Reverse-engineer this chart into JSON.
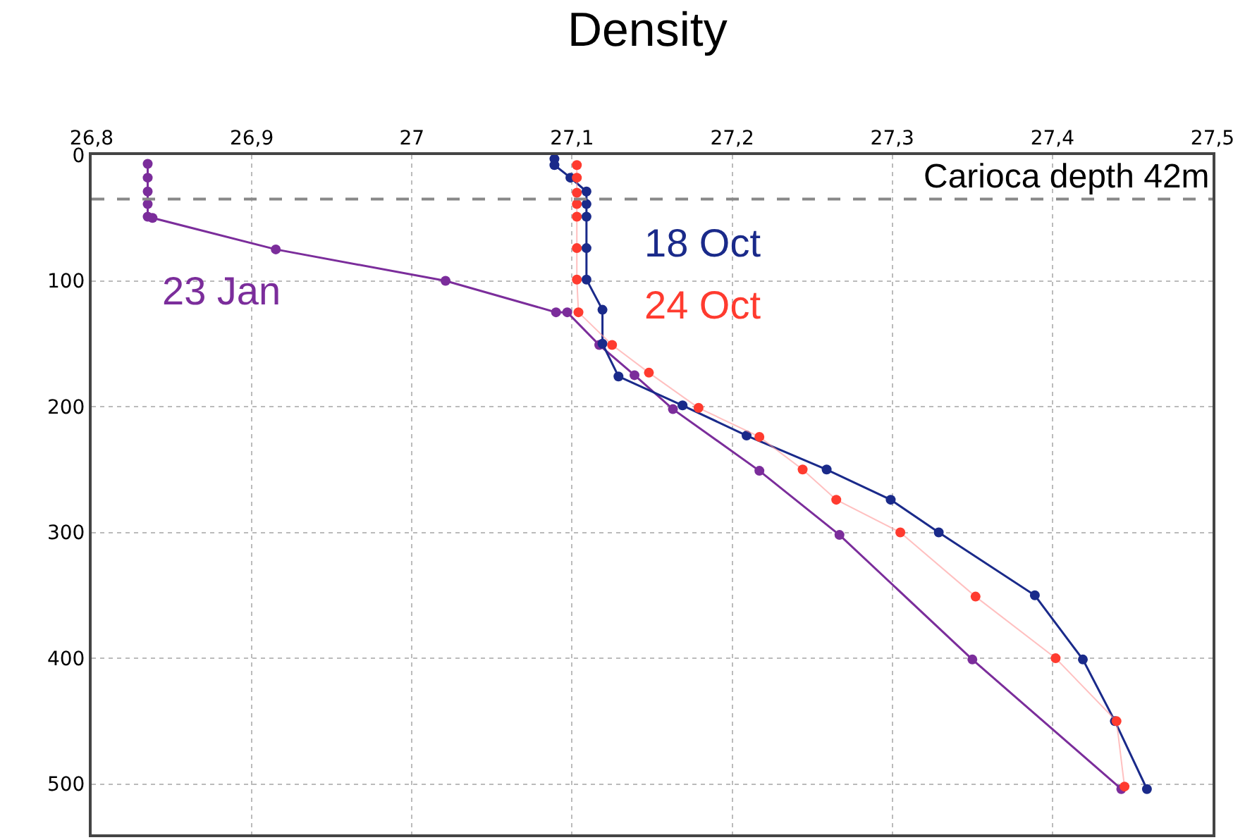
{
  "chart_data": {
    "type": "line",
    "title": "Density",
    "xlim": [
      26.8,
      27.5
    ],
    "xticks": [
      {
        "value": 26.8,
        "label": "26,8"
      },
      {
        "value": 26.9,
        "label": "26,9"
      },
      27,
      {
        "value": 27.1,
        "label": "27,1"
      },
      {
        "value": 27.2,
        "label": "27,2"
      },
      {
        "value": 27.3,
        "label": "27,3"
      },
      {
        "value": 27.4,
        "label": "27,4"
      },
      {
        "value": 27.5,
        "label": "27,5"
      }
    ],
    "ylim": [
      540,
      0
    ],
    "yticks": [
      0,
      100,
      200,
      300,
      400,
      500
    ],
    "grid": true,
    "legend": false,
    "marker": "circle",
    "line_style": "solid",
    "series": [
      {
        "name": "23 Jan",
        "color": "#7b2d9b",
        "x": [
          26.835,
          26.835,
          26.835,
          26.835,
          26.835,
          26.838,
          26.915,
          27.021,
          27.09,
          27.097,
          27.117,
          27.139,
          27.163,
          27.217,
          27.267,
          27.35,
          27.443
        ],
        "values": [
          7,
          18,
          29,
          39,
          49,
          50,
          75,
          100,
          125,
          125,
          151,
          175,
          202,
          251,
          302,
          401,
          504
        ]
      },
      {
        "name": "18 Oct",
        "color": "#1a2a8a",
        "x": [
          27.089,
          27.089,
          27.099,
          27.109,
          27.109,
          27.109,
          27.109,
          27.109,
          27.119,
          27.119,
          27.129,
          27.169,
          27.209,
          27.259,
          27.299,
          27.329,
          27.389,
          27.419,
          27.439,
          27.459
        ],
        "values": [
          3,
          8,
          18,
          29,
          39,
          49,
          74,
          99,
          123,
          150,
          176,
          199,
          223,
          250,
          274,
          300,
          350,
          401,
          450,
          504
        ]
      },
      {
        "name": "24 Oct",
        "color": "#ff3b2f",
        "x": [
          27.103,
          27.103,
          27.103,
          27.103,
          27.103,
          27.103,
          27.103,
          27.104,
          27.125,
          27.148,
          27.179,
          27.217,
          27.244,
          27.265,
          27.305,
          27.352,
          27.402,
          27.44,
          27.445
        ],
        "values": [
          8,
          18,
          30,
          39,
          49,
          74,
          99,
          125,
          151,
          173,
          201,
          224,
          250,
          274,
          300,
          351,
          400,
          450,
          502
        ]
      }
    ],
    "ref_lines": [
      {
        "axis": "y",
        "value": 35,
        "label": "Carioca depth 42m",
        "color": "#888888",
        "line_style": "dashed"
      }
    ]
  }
}
